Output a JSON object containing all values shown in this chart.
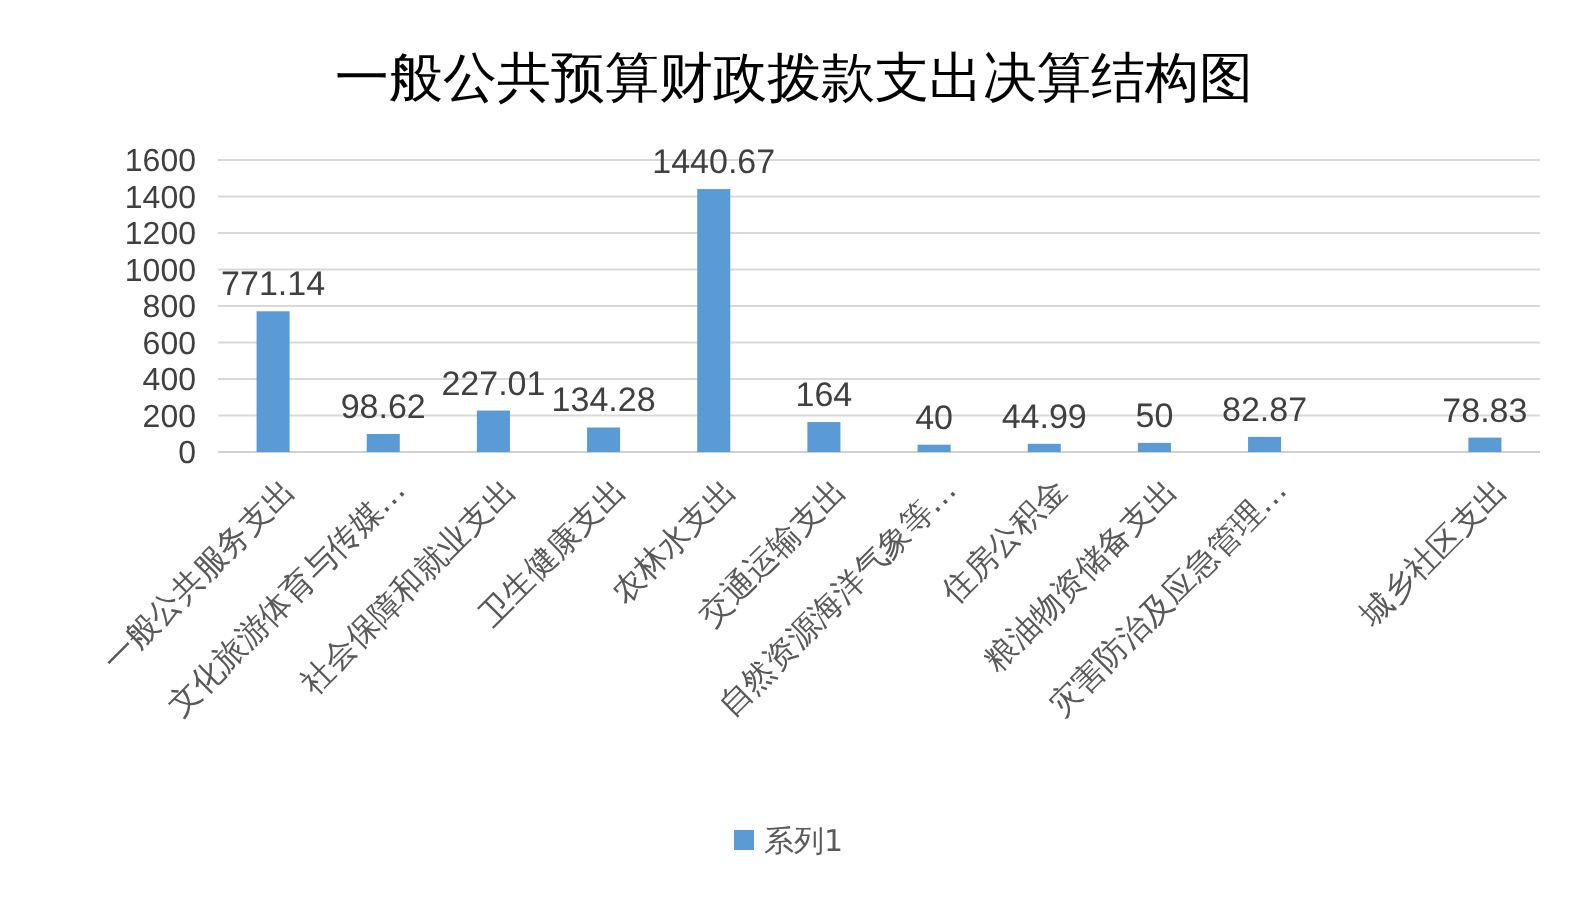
{
  "chart_data": {
    "type": "bar",
    "title": "一般公共预算财政拨款支出决算结构图",
    "categories": [
      "一般公共服务支出",
      "文化旅游体育与传媒…",
      "社会保障和就业支出",
      "卫生健康支出",
      "农林水支出",
      "交通运输支出",
      "自然资源海洋气象等…",
      "住房公积金",
      "粮油物资储备支出",
      "灾害防治及应急管理…",
      null,
      "城乡社区支出"
    ],
    "series": [
      {
        "name": "系列1",
        "color": "#5b9bd5",
        "values": [
          771.14,
          98.62,
          227.01,
          134.28,
          1440.67,
          164,
          40,
          44.99,
          50,
          82.87,
          null,
          78.83
        ]
      }
    ],
    "ylim": [
      0,
      1600
    ],
    "yticks": [
      0,
      200,
      400,
      600,
      800,
      1000,
      1200,
      1400,
      1600
    ],
    "grid": "y",
    "legend": "bottom",
    "data_labels": true
  }
}
